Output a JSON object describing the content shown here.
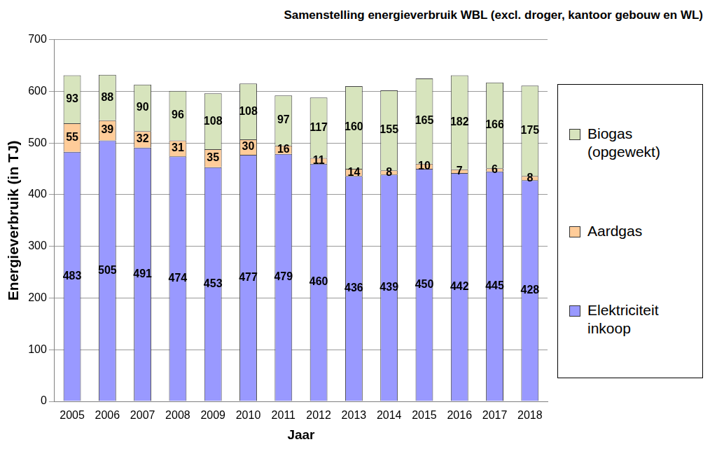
{
  "chart_data": {
    "type": "bar",
    "title": "Samenstelling energieverbruik WBL (excl. droger, kantoor gebouw en WL)",
    "x_label": "Jaar",
    "y_label": "Energieverbruik (in TJ)",
    "categories": [
      "2005",
      "2006",
      "2007",
      "2008",
      "2009",
      "2010",
      "2011",
      "2012",
      "2013",
      "2014",
      "2015",
      "2016",
      "2017",
      "2018"
    ],
    "series": [
      {
        "name": "Elektriciteit inkoop",
        "color": "#9999ff",
        "values": [
          483,
          505,
          491,
          474,
          453,
          477,
          479,
          460,
          436,
          439,
          450,
          442,
          445,
          428
        ]
      },
      {
        "name": "Aardgas",
        "color": "#ffcc99",
        "values": [
          55,
          39,
          32,
          31,
          35,
          30,
          16,
          11,
          14,
          8,
          10,
          7,
          6,
          8
        ]
      },
      {
        "name": "Biogas (opgewekt)",
        "color": "#d7e4bd",
        "values": [
          93,
          88,
          90,
          96,
          108,
          108,
          97,
          117,
          160,
          155,
          165,
          182,
          166,
          175
        ]
      }
    ],
    "ylim": [
      0,
      700
    ],
    "yticks": [
      0,
      100,
      200,
      300,
      400,
      500,
      600,
      700
    ],
    "stacked": true,
    "data_labels": true,
    "grid": true,
    "legend": "right"
  }
}
